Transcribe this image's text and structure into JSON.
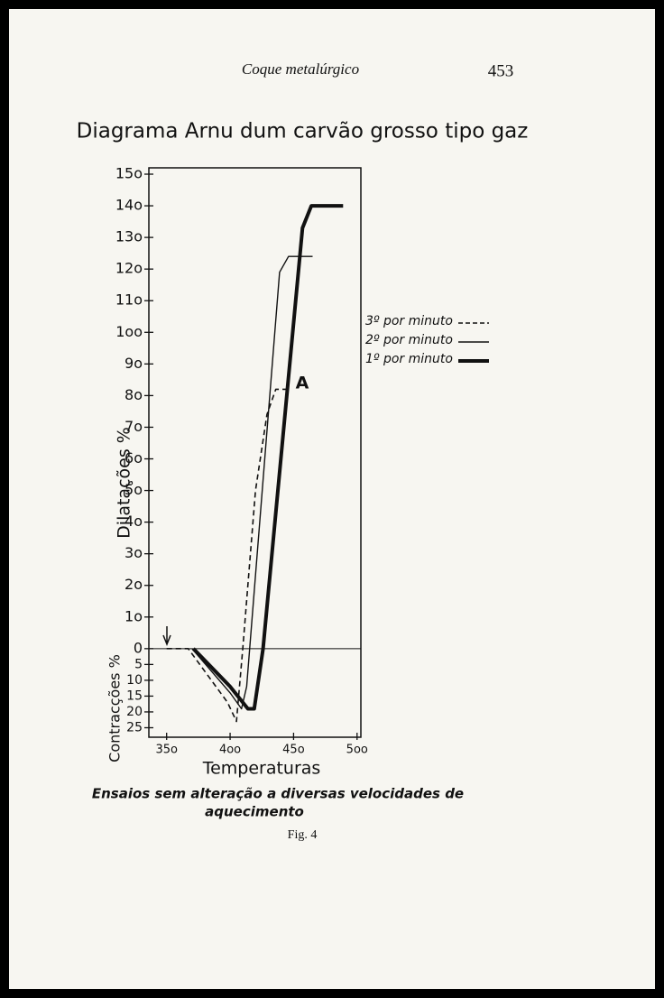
{
  "header": {
    "running_title": "Coque metalúrgico",
    "page_number": "453"
  },
  "chart_data": {
    "type": "line",
    "title": "Diagrama Arnu dum carvão grosso tipo gaz",
    "xlabel": "Temperaturas",
    "ylabel": "Dilatações %",
    "ylabel_contraction": "Contracções %",
    "annotation": "A",
    "xlim": [
      336,
      503
    ],
    "ylim": [
      -28,
      152
    ],
    "xticks": [
      {
        "value": 350,
        "label": "35o"
      },
      {
        "value": 400,
        "label": "4oo"
      },
      {
        "value": 450,
        "label": "45o"
      },
      {
        "value": 500,
        "label": "5oo"
      }
    ],
    "yticks": [
      {
        "value": -25,
        "label": "25"
      },
      {
        "value": -20,
        "label": "20"
      },
      {
        "value": -15,
        "label": "15"
      },
      {
        "value": -10,
        "label": "10"
      },
      {
        "value": -5,
        "label": "5"
      },
      0,
      {
        "value": 10,
        "label": "1o"
      },
      {
        "value": 20,
        "label": "2o"
      },
      {
        "value": 30,
        "label": "3o"
      },
      {
        "value": 40,
        "label": "4o"
      },
      {
        "value": 50,
        "label": "5o"
      },
      {
        "value": 60,
        "label": "6o"
      },
      {
        "value": 70,
        "label": "7o"
      },
      {
        "value": 80,
        "label": "8o"
      },
      {
        "value": 90,
        "label": "9o"
      },
      {
        "value": 100,
        "label": "1oo"
      },
      {
        "value": 110,
        "label": "11o"
      },
      {
        "value": 120,
        "label": "12o"
      },
      {
        "value": 130,
        "label": "13o"
      },
      {
        "value": 140,
        "label": "14o"
      },
      {
        "value": 150,
        "label": "15o"
      }
    ],
    "series": [
      {
        "name": "3º por minuto",
        "color": "#111111",
        "line_style": "dashed",
        "line_width": 1.6,
        "x": [
          350,
          367,
          398,
          405,
          410,
          420,
          429,
          436,
          448
        ],
        "values": [
          0,
          0,
          -17,
          -23,
          0,
          50,
          74,
          82,
          82
        ]
      },
      {
        "name": "2º por minuto",
        "color": "#111111",
        "line_style": "solid",
        "line_width": 1.4,
        "x": [
          370,
          400,
          409,
          413,
          439,
          446,
          465
        ],
        "values": [
          0,
          -14,
          -19,
          -12,
          119,
          124,
          124
        ]
      },
      {
        "name": "1º por minuto",
        "color": "#111111",
        "line_style": "solid",
        "line_width": 4,
        "x": [
          371,
          400,
          414,
          419,
          426,
          457,
          464,
          489
        ],
        "values": [
          0,
          -12,
          -19,
          -19,
          0,
          133,
          140,
          140
        ]
      }
    ]
  },
  "caption": {
    "text_line1": "Ensaios sem alteração a diversas velocidades de",
    "text_line2": "aquecimento",
    "figure": "Fig. 4"
  }
}
